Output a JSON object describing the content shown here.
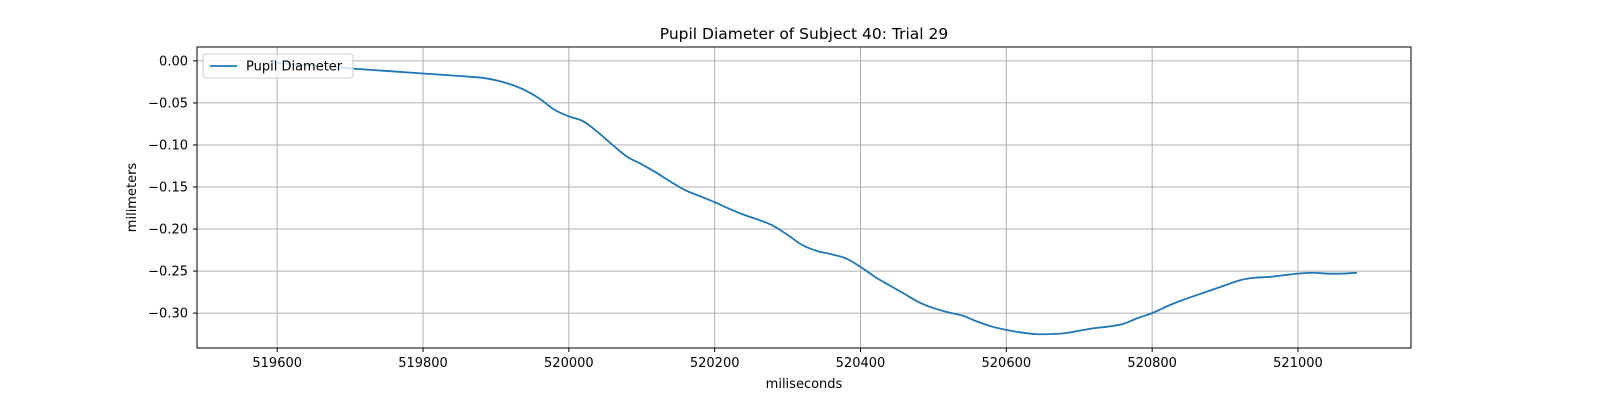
{
  "chart_data": {
    "type": "line",
    "title": "Pupil Diameter of Subject 40: Trial 29",
    "xlabel": "miliseconds",
    "ylabel": "milimeters",
    "xlim": [
      519490,
      521155
    ],
    "ylim": [
      -0.3415,
      0.0165
    ],
    "xticks": [
      519600,
      519800,
      520000,
      520200,
      520400,
      520600,
      520800,
      521000
    ],
    "yticks": [
      0.0,
      -0.05,
      -0.1,
      -0.15,
      -0.2,
      -0.25,
      -0.3
    ],
    "ytick_labels": [
      "0.00",
      "−0.05",
      "−0.10",
      "−0.15",
      "−0.20",
      "−0.25",
      "−0.30"
    ],
    "grid": true,
    "legend_position": "upper-left",
    "series": [
      {
        "name": "Pupil Diameter",
        "color": "#1f77b4",
        "x": [
          519590,
          519620,
          519660,
          519700,
          519750,
          519800,
          519850,
          519880,
          519900,
          519920,
          519940,
          519960,
          519980,
          520000,
          520020,
          520040,
          520060,
          520080,
          520100,
          520120,
          520140,
          520160,
          520180,
          520200,
          520220,
          520240,
          520260,
          520280,
          520300,
          520320,
          520340,
          520360,
          520380,
          520400,
          520420,
          520440,
          520460,
          520480,
          520500,
          520520,
          520540,
          520560,
          520580,
          520600,
          520620,
          520640,
          520660,
          520680,
          520700,
          520720,
          520740,
          520760,
          520780,
          520800,
          520820,
          520840,
          520860,
          520880,
          520900,
          520920,
          520940,
          520960,
          520980,
          521000,
          521020,
          521040,
          521060,
          521080
        ],
        "y": [
          -0.001,
          -0.004,
          -0.006,
          -0.009,
          -0.012,
          -0.015,
          -0.018,
          -0.02,
          -0.023,
          -0.028,
          -0.035,
          -0.045,
          -0.058,
          -0.066,
          -0.072,
          -0.085,
          -0.1,
          -0.114,
          -0.123,
          -0.133,
          -0.144,
          -0.154,
          -0.161,
          -0.168,
          -0.176,
          -0.183,
          -0.189,
          -0.196,
          -0.207,
          -0.219,
          -0.226,
          -0.23,
          -0.235,
          -0.245,
          -0.257,
          -0.267,
          -0.277,
          -0.287,
          -0.294,
          -0.299,
          -0.303,
          -0.31,
          -0.316,
          -0.32,
          -0.323,
          -0.325,
          -0.325,
          -0.324,
          -0.321,
          -0.318,
          -0.316,
          -0.313,
          -0.306,
          -0.3,
          -0.292,
          -0.285,
          -0.279,
          -0.273,
          -0.267,
          -0.261,
          -0.258,
          -0.257,
          -0.255,
          -0.253,
          -0.252,
          -0.253,
          -0.253,
          -0.252
        ]
      }
    ]
  }
}
